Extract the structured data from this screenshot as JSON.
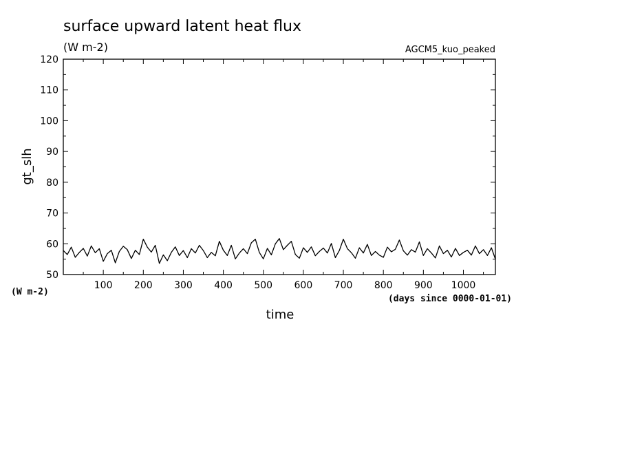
{
  "chart_data": {
    "type": "line",
    "title": "surface upward latent heat flux",
    "subtitle": "(W m-2)",
    "run_label": "AGCM5_kuo_peaked",
    "ylabel": "gt_slh",
    "y_unit_label": "(W m-2)",
    "xlabel": "time",
    "x_unit_label": "(days since 0000-01-01)",
    "xlim": [
      0,
      1080
    ],
    "ylim": [
      50,
      120
    ],
    "x_ticks": [
      "100",
      "200",
      "300",
      "400",
      "500",
      "600",
      "700",
      "800",
      "900",
      "1000"
    ],
    "y_ticks": [
      "50",
      "60",
      "70",
      "80",
      "90",
      "100",
      "110",
      "120"
    ],
    "grid": false,
    "series": [
      {
        "x": [
          0,
          10,
          20,
          30,
          40,
          50,
          60,
          70,
          80,
          90,
          100,
          110,
          120,
          130,
          140,
          150,
          160,
          170,
          180,
          190,
          200,
          210,
          220,
          230,
          240,
          250,
          260,
          270,
          280,
          290,
          300,
          310,
          320,
          330,
          340,
          350,
          360,
          370,
          380,
          390,
          400,
          410,
          420,
          430,
          440,
          450,
          460,
          470,
          480,
          490,
          500,
          510,
          520,
          530,
          540,
          550,
          560,
          570,
          580,
          590,
          600,
          610,
          620,
          630,
          640,
          650,
          660,
          670,
          680,
          690,
          700,
          710,
          720,
          730,
          740,
          750,
          760,
          770,
          780,
          790,
          800,
          810,
          820,
          830,
          840,
          850,
          860,
          870,
          880,
          890,
          900,
          910,
          920,
          930,
          940,
          950,
          960,
          970,
          980,
          990,
          1000,
          1010,
          1020,
          1030,
          1040,
          1050,
          1060,
          1070,
          1080
        ],
        "y": [
          57.8,
          56.5,
          58.9,
          55.6,
          57.2,
          58.5,
          56.0,
          59.3,
          57.1,
          58.4,
          54.3,
          56.8,
          57.9,
          53.8,
          57.5,
          59.2,
          58.1,
          55.2,
          57.9,
          56.5,
          61.5,
          58.9,
          57.3,
          59.5,
          53.6,
          56.4,
          54.5,
          57.2,
          59.0,
          56.2,
          57.8,
          55.5,
          58.4,
          57.0,
          59.5,
          57.8,
          55.5,
          57.2,
          56.1,
          60.8,
          57.9,
          56.2,
          59.5,
          55.1,
          57.0,
          58.4,
          56.8,
          60.3,
          61.5,
          57.2,
          55.1,
          58.5,
          56.4,
          60.0,
          61.7,
          58.1,
          59.5,
          60.8,
          56.5,
          55.3,
          58.7,
          57.2,
          59.0,
          56.1,
          57.5,
          58.6,
          57.0,
          60.1,
          55.5,
          57.8,
          61.5,
          58.4,
          57.1,
          55.3,
          58.7,
          57.0,
          59.8,
          56.2,
          57.5,
          56.3,
          55.6,
          58.9,
          57.4,
          58.2,
          61.2,
          57.7,
          56.3,
          58.1,
          57.3,
          60.6,
          56.2,
          58.4,
          57.0,
          55.4,
          59.3,
          56.8,
          57.9,
          55.7,
          58.5,
          56.2,
          57.2,
          57.9,
          56.3,
          59.3,
          56.8,
          58.1,
          56.2,
          58.7,
          55.0
        ]
      }
    ]
  }
}
